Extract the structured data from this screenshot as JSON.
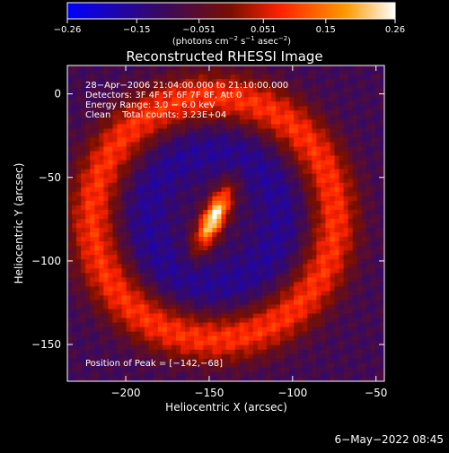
{
  "chart_data": {
    "type": "heatmap",
    "title": "Reconstructed RHESSI Image",
    "xlabel": "Heliocentric X (arcsec)",
    "ylabel": "Heliocentric Y (arcsec)",
    "xlim": [
      -235,
      -45
    ],
    "ylim": [
      -172,
      17
    ],
    "xticks": [
      -200,
      -150,
      -100,
      -50
    ],
    "yticks": [
      0,
      -50,
      -100,
      -150
    ],
    "xtick_labels": [
      "−200",
      "−150",
      "−100",
      "−50"
    ],
    "ytick_labels": [
      "0",
      "−50",
      "−100",
      "−150"
    ],
    "colorbar": {
      "range": [
        -0.26,
        0.26
      ],
      "ticks": [
        -0.26,
        -0.15,
        -0.051,
        0.051,
        0.15,
        0.26
      ],
      "tick_labels": [
        "−0.26",
        "−0.15",
        "−0.051",
        "0.051",
        "0.15",
        "0.26"
      ],
      "units_prefix": "(photons cm",
      "units_sup1": "−2",
      "units_mid1": " s",
      "units_sup2": "−1",
      "units_mid2": " asec",
      "units_sup3": "−2",
      "units_suffix": ")",
      "colors": [
        "#0000ff",
        "#3b0a5a",
        "#7a0f00",
        "#ff2200",
        "#ff9a00",
        "#ffffff"
      ]
    },
    "annotations": {
      "line1": "28−Apr−2006 21:04:00.000 to 21:10:00.000",
      "line2": "Detectors: 3F 4F 5F 6F 7F 8F, Att 0",
      "line3": "Energy Range: 3.0 − 6.0 keV",
      "line4": "Clean    Total counts: 3.23E+04",
      "peak": "Position of Peak = [−142,−68]"
    },
    "peak_position": [
      -142,
      -68
    ],
    "timestamp": "6−May−2022 08:45"
  }
}
